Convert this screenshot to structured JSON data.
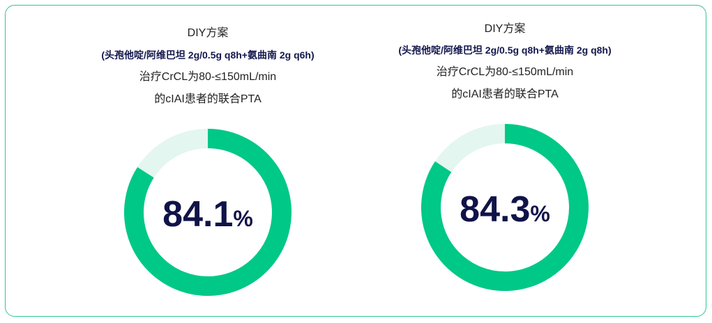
{
  "colors": {
    "ring": "#00c887",
    "ring_track": "#e3f6f0",
    "value_text": "#101348",
    "regimen_text": "#13184d",
    "frame": "#2fc690"
  },
  "chart_data": [
    {
      "type": "pie",
      "title": "DIY方案",
      "subtitle": "(头孢他啶/阿维巴坦 2g/0.5g q8h+氨曲南 2g q6h)",
      "description_line1": "治疗CrCL为80-≤150mL/min",
      "description_line2": "的cIAI患者的联合PTA",
      "value": 84.1,
      "value_label": "84.1",
      "unit": "%"
    },
    {
      "type": "pie",
      "title": "DIY方案",
      "subtitle": "(头孢他啶/阿维巴坦 2g/0.5g q8h+氨曲南 2g q8h)",
      "description_line1": "治疗CrCL为80-≤150mL/min",
      "description_line2": "的cIAI患者的联合PTA",
      "value": 84.3,
      "value_label": "84.3",
      "unit": "%"
    }
  ]
}
